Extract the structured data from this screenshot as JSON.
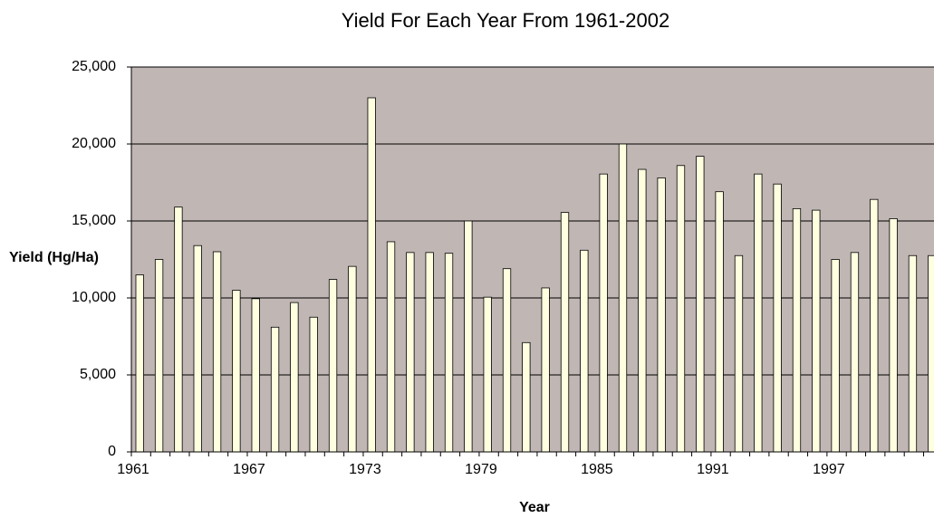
{
  "chart_data": {
    "type": "bar",
    "title": "Yield For Each Year From 1961-2002",
    "x_label": "Year",
    "y_label": "Yield (Hg/Ha)",
    "categories": [
      "1961",
      null,
      null,
      null,
      null,
      null,
      "1967",
      null,
      null,
      null,
      null,
      null,
      "1973",
      null,
      null,
      null,
      null,
      null,
      "1979",
      null,
      null,
      null,
      null,
      null,
      "1985",
      null,
      null,
      null,
      null,
      null,
      "1991",
      null,
      null,
      null,
      null,
      null,
      "1997",
      null,
      null,
      null,
      null,
      null
    ],
    "values": [
      11500,
      12500,
      15900,
      13400,
      13000,
      10500,
      9950,
      8100,
      9700,
      8750,
      11200,
      12050,
      23000,
      13650,
      12950,
      12950,
      12900,
      15000,
      10050,
      11900,
      7100,
      10650,
      15550,
      13100,
      18050,
      20000,
      18350,
      17800,
      18600,
      19200,
      16900,
      12750,
      18050,
      17400,
      15800,
      15700,
      12500,
      12950,
      16400,
      15150,
      12750,
      12750
    ],
    "color": "#ffffe0",
    "plot_background": "#c0b6b4",
    "ylim": [
      0,
      25000
    ],
    "yticks": [
      0,
      {
        "value": 5000,
        "label": "5,000"
      },
      {
        "value": 10000,
        "label": "10,000"
      },
      {
        "value": 15000,
        "label": "15,000"
      },
      {
        "value": 20000,
        "label": "20,000"
      },
      {
        "value": 25000,
        "label": "25,000"
      }
    ],
    "grid": true
  }
}
